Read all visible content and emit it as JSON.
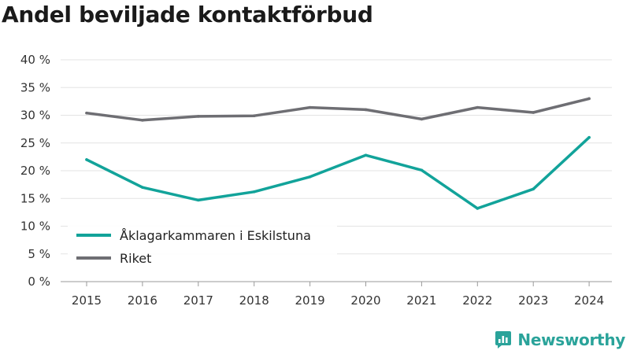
{
  "chart_data": {
    "type": "line",
    "title": "Andel beviljade kontaktförbud",
    "categories": [
      "2015",
      "2016",
      "2017",
      "2018",
      "2019",
      "2020",
      "2021",
      "2022",
      "2023",
      "2024"
    ],
    "yticks": [
      "0 %",
      "5 %",
      "10 %",
      "15 %",
      "20 %",
      "25 %",
      "30 %",
      "35 %",
      "40 %"
    ],
    "ylim": [
      0,
      40
    ],
    "grid": true,
    "legend_position": "bottom-left",
    "series": [
      {
        "name": "Åklagarkammaren i Eskilstuna",
        "color": "#12a39a",
        "values": [
          22.0,
          17.0,
          14.7,
          16.2,
          18.9,
          22.8,
          20.1,
          13.2,
          16.7,
          26.0
        ]
      },
      {
        "name": "Riket",
        "color": "#6e6e73",
        "values": [
          30.4,
          29.1,
          29.8,
          29.9,
          31.4,
          31.0,
          29.3,
          31.4,
          30.5,
          33.0
        ]
      }
    ]
  },
  "brand": {
    "name": "Newsworthy",
    "color": "#2aa39a"
  }
}
